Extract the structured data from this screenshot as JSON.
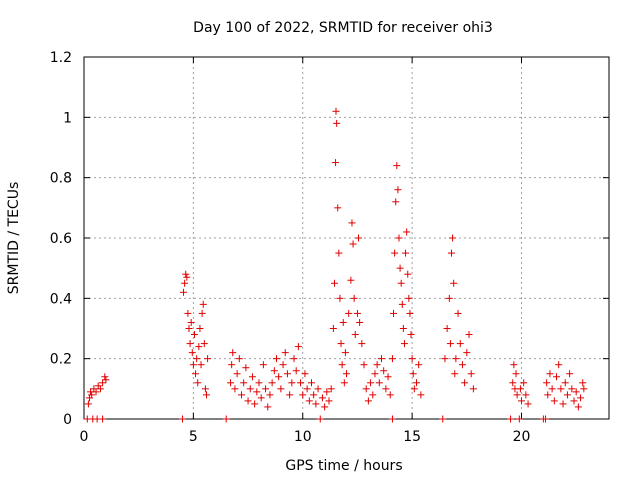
{
  "chart_data": {
    "type": "scatter",
    "title": "Day 100 of 2022, SRMTID for receiver ohi3",
    "xlabel": "GPS time / hours",
    "ylabel": "SRMTID / TECUs",
    "xlim": [
      0,
      24
    ],
    "ylim": [
      0,
      1.2
    ],
    "xticks": [
      0,
      5,
      10,
      15,
      20
    ],
    "yticks": [
      0,
      0.2,
      0.4,
      0.6,
      0.8,
      1,
      1.2
    ],
    "ytick_labels": [
      "0",
      "0.2",
      "0.4",
      "0.6",
      "0.8",
      "1",
      "1.2"
    ],
    "grid": true,
    "marker": "+",
    "color": "#e00000",
    "series": [
      {
        "name": "SRMTID",
        "points": [
          [
            0.15,
            0.0
          ],
          [
            0.4,
            0.0
          ],
          [
            0.6,
            0.0
          ],
          [
            0.85,
            0.0
          ],
          [
            4.5,
            0.0
          ],
          [
            6.5,
            0.0
          ],
          [
            10.8,
            0.0
          ],
          [
            14.1,
            0.0
          ],
          [
            16.4,
            0.0
          ],
          [
            19.5,
            0.0
          ],
          [
            19.9,
            0.0
          ],
          [
            21.0,
            0.0
          ],
          [
            21.1,
            0.0
          ],
          [
            0.2,
            0.05
          ],
          [
            0.25,
            0.07
          ],
          [
            0.3,
            0.09
          ],
          [
            0.35,
            0.08
          ],
          [
            0.45,
            0.1
          ],
          [
            0.55,
            0.09
          ],
          [
            0.65,
            0.11
          ],
          [
            0.75,
            0.1
          ],
          [
            0.85,
            0.12
          ],
          [
            0.95,
            0.14
          ],
          [
            1.0,
            0.13
          ],
          [
            4.55,
            0.42
          ],
          [
            4.6,
            0.45
          ],
          [
            4.65,
            0.48
          ],
          [
            4.7,
            0.47
          ],
          [
            4.75,
            0.35
          ],
          [
            4.8,
            0.3
          ],
          [
            4.85,
            0.25
          ],
          [
            4.9,
            0.32
          ],
          [
            4.95,
            0.22
          ],
          [
            5.0,
            0.18
          ],
          [
            5.05,
            0.28
          ],
          [
            5.1,
            0.15
          ],
          [
            5.15,
            0.2
          ],
          [
            5.2,
            0.12
          ],
          [
            5.25,
            0.24
          ],
          [
            5.3,
            0.3
          ],
          [
            5.35,
            0.18
          ],
          [
            5.4,
            0.35
          ],
          [
            5.45,
            0.38
          ],
          [
            5.5,
            0.25
          ],
          [
            5.55,
            0.1
          ],
          [
            5.6,
            0.08
          ],
          [
            5.65,
            0.2
          ],
          [
            6.7,
            0.12
          ],
          [
            6.75,
            0.18
          ],
          [
            6.8,
            0.22
          ],
          [
            6.9,
            0.1
          ],
          [
            7.0,
            0.15
          ],
          [
            7.1,
            0.2
          ],
          [
            7.2,
            0.08
          ],
          [
            7.3,
            0.12
          ],
          [
            7.4,
            0.17
          ],
          [
            7.5,
            0.06
          ],
          [
            7.6,
            0.1
          ],
          [
            7.7,
            0.14
          ],
          [
            7.8,
            0.05
          ],
          [
            7.9,
            0.09
          ],
          [
            8.0,
            0.12
          ],
          [
            8.1,
            0.07
          ],
          [
            8.2,
            0.18
          ],
          [
            8.3,
            0.1
          ],
          [
            8.4,
            0.04
          ],
          [
            8.5,
            0.08
          ],
          [
            8.6,
            0.12
          ],
          [
            8.7,
            0.16
          ],
          [
            8.8,
            0.2
          ],
          [
            8.9,
            0.14
          ],
          [
            9.0,
            0.1
          ],
          [
            9.1,
            0.18
          ],
          [
            9.2,
            0.22
          ],
          [
            9.3,
            0.15
          ],
          [
            9.4,
            0.08
          ],
          [
            9.5,
            0.12
          ],
          [
            9.6,
            0.2
          ],
          [
            9.7,
            0.16
          ],
          [
            9.8,
            0.24
          ],
          [
            9.9,
            0.12
          ],
          [
            10.0,
            0.08
          ],
          [
            10.1,
            0.15
          ],
          [
            10.2,
            0.1
          ],
          [
            10.3,
            0.06
          ],
          [
            10.4,
            0.12
          ],
          [
            10.5,
            0.08
          ],
          [
            10.6,
            0.05
          ],
          [
            10.7,
            0.1
          ],
          [
            10.9,
            0.07
          ],
          [
            11.0,
            0.04
          ],
          [
            11.1,
            0.09
          ],
          [
            11.2,
            0.06
          ],
          [
            11.3,
            0.1
          ],
          [
            11.4,
            0.3
          ],
          [
            11.45,
            0.45
          ],
          [
            11.5,
            0.85
          ],
          [
            11.52,
            1.02
          ],
          [
            11.55,
            0.98
          ],
          [
            11.6,
            0.7
          ],
          [
            11.65,
            0.55
          ],
          [
            11.7,
            0.4
          ],
          [
            11.75,
            0.25
          ],
          [
            11.8,
            0.18
          ],
          [
            11.85,
            0.32
          ],
          [
            11.9,
            0.12
          ],
          [
            11.95,
            0.22
          ],
          [
            12.0,
            0.15
          ],
          [
            12.1,
            0.35
          ],
          [
            12.2,
            0.46
          ],
          [
            12.25,
            0.65
          ],
          [
            12.3,
            0.58
          ],
          [
            12.35,
            0.4
          ],
          [
            12.4,
            0.28
          ],
          [
            12.5,
            0.35
          ],
          [
            12.55,
            0.6
          ],
          [
            12.6,
            0.32
          ],
          [
            12.7,
            0.25
          ],
          [
            12.8,
            0.18
          ],
          [
            12.9,
            0.1
          ],
          [
            13.0,
            0.06
          ],
          [
            13.1,
            0.12
          ],
          [
            13.2,
            0.08
          ],
          [
            13.3,
            0.15
          ],
          [
            13.4,
            0.18
          ],
          [
            13.5,
            0.12
          ],
          [
            13.6,
            0.2
          ],
          [
            13.7,
            0.16
          ],
          [
            13.8,
            0.1
          ],
          [
            13.9,
            0.14
          ],
          [
            14.0,
            0.08
          ],
          [
            14.1,
            0.2
          ],
          [
            14.15,
            0.35
          ],
          [
            14.2,
            0.55
          ],
          [
            14.25,
            0.72
          ],
          [
            14.3,
            0.84
          ],
          [
            14.35,
            0.76
          ],
          [
            14.4,
            0.6
          ],
          [
            14.45,
            0.5
          ],
          [
            14.5,
            0.45
          ],
          [
            14.55,
            0.38
          ],
          [
            14.6,
            0.3
          ],
          [
            14.65,
            0.25
          ],
          [
            14.7,
            0.55
          ],
          [
            14.75,
            0.62
          ],
          [
            14.8,
            0.48
          ],
          [
            14.85,
            0.4
          ],
          [
            14.9,
            0.35
          ],
          [
            14.95,
            0.28
          ],
          [
            15.0,
            0.2
          ],
          [
            15.05,
            0.15
          ],
          [
            15.1,
            0.1
          ],
          [
            15.2,
            0.12
          ],
          [
            15.3,
            0.18
          ],
          [
            15.4,
            0.08
          ],
          [
            16.5,
            0.2
          ],
          [
            16.6,
            0.3
          ],
          [
            16.7,
            0.4
          ],
          [
            16.75,
            0.25
          ],
          [
            16.8,
            0.55
          ],
          [
            16.85,
            0.6
          ],
          [
            16.9,
            0.45
          ],
          [
            16.95,
            0.15
          ],
          [
            17.0,
            0.2
          ],
          [
            17.1,
            0.35
          ],
          [
            17.2,
            0.25
          ],
          [
            17.3,
            0.18
          ],
          [
            17.4,
            0.12
          ],
          [
            17.5,
            0.22
          ],
          [
            17.6,
            0.28
          ],
          [
            17.7,
            0.15
          ],
          [
            17.8,
            0.1
          ],
          [
            19.6,
            0.12
          ],
          [
            19.65,
            0.18
          ],
          [
            19.7,
            0.1
          ],
          [
            19.75,
            0.15
          ],
          [
            19.8,
            0.08
          ],
          [
            19.95,
            0.1
          ],
          [
            20.0,
            0.06
          ],
          [
            20.1,
            0.12
          ],
          [
            20.2,
            0.08
          ],
          [
            20.3,
            0.05
          ],
          [
            21.15,
            0.12
          ],
          [
            21.2,
            0.08
          ],
          [
            21.3,
            0.15
          ],
          [
            21.4,
            0.1
          ],
          [
            21.5,
            0.06
          ],
          [
            21.6,
            0.14
          ],
          [
            21.7,
            0.18
          ],
          [
            21.8,
            0.1
          ],
          [
            21.9,
            0.05
          ],
          [
            22.0,
            0.12
          ],
          [
            22.1,
            0.08
          ],
          [
            22.2,
            0.15
          ],
          [
            22.3,
            0.1
          ],
          [
            22.4,
            0.06
          ],
          [
            22.5,
            0.09
          ],
          [
            22.6,
            0.04
          ],
          [
            22.7,
            0.07
          ],
          [
            22.8,
            0.12
          ],
          [
            22.85,
            0.1
          ]
        ]
      }
    ]
  }
}
